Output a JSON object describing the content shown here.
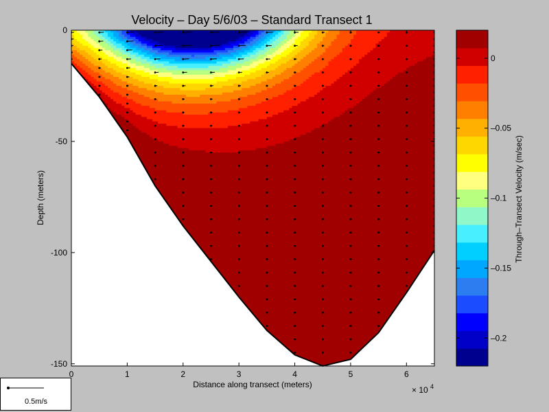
{
  "chart_data": {
    "type": "heatmap",
    "title": "Velocity – Day 5/6/03 – Standard Transect 1",
    "xlabel": "Distance along transect (meters)",
    "ylabel": "Depth (meters)",
    "x_multiplier": "× 10",
    "x_multiplier_exp": "4",
    "xlim": [
      0,
      65000
    ],
    "ylim": [
      -151,
      0
    ],
    "x_ticks": [
      0,
      10000,
      20000,
      30000,
      40000,
      50000,
      60000
    ],
    "x_tick_labels": [
      "0",
      "1",
      "2",
      "3",
      "4",
      "5",
      "6"
    ],
    "y_ticks": [
      0,
      -50,
      -100,
      -150
    ],
    "y_tick_labels": [
      "0",
      "-50",
      "-100",
      "-150"
    ],
    "bottom_profile": [
      [
        0,
        -15
      ],
      [
        5000,
        -30
      ],
      [
        10000,
        -48
      ],
      [
        15000,
        -70
      ],
      [
        20000,
        -88
      ],
      [
        25000,
        -104
      ],
      [
        30000,
        -120
      ],
      [
        35000,
        -135
      ],
      [
        40000,
        -146
      ],
      [
        45000,
        -151
      ],
      [
        50000,
        -148
      ],
      [
        55000,
        -136
      ],
      [
        60000,
        -118
      ],
      [
        65000,
        -99
      ]
    ],
    "colorbar": {
      "label": "Through–Transect Velocity (m/sec)",
      "range": [
        -0.22,
        0.02
      ],
      "ticks": [
        0,
        -0.05,
        -0.1,
        -0.15,
        -0.2
      ],
      "tick_labels": [
        "0",
        "–0.05",
        "–0.1",
        "–0.15",
        "–0.2"
      ],
      "colors": [
        "#00008f",
        "#0000c8",
        "#0000ff",
        "#1c4cff",
        "#2c7df0",
        "#00a7ff",
        "#00cfff",
        "#48efff",
        "#8ff7c8",
        "#b8ff80",
        "#ffff80",
        "#ffff00",
        "#ffd700",
        "#ffb000",
        "#ff8000",
        "#ff5000",
        "#ff2000",
        "#d00000",
        "#a00000"
      ]
    },
    "velocity_field_description_values": {
      "surface_min": -0.21,
      "bottom_max": 0.02
    },
    "station_x": [
      0,
      5000,
      10000,
      15000,
      20000,
      25000,
      30000,
      35000,
      40000,
      45000,
      50000,
      55000,
      60000,
      65000
    ],
    "scale_arrow_label": "0.5m/s"
  }
}
